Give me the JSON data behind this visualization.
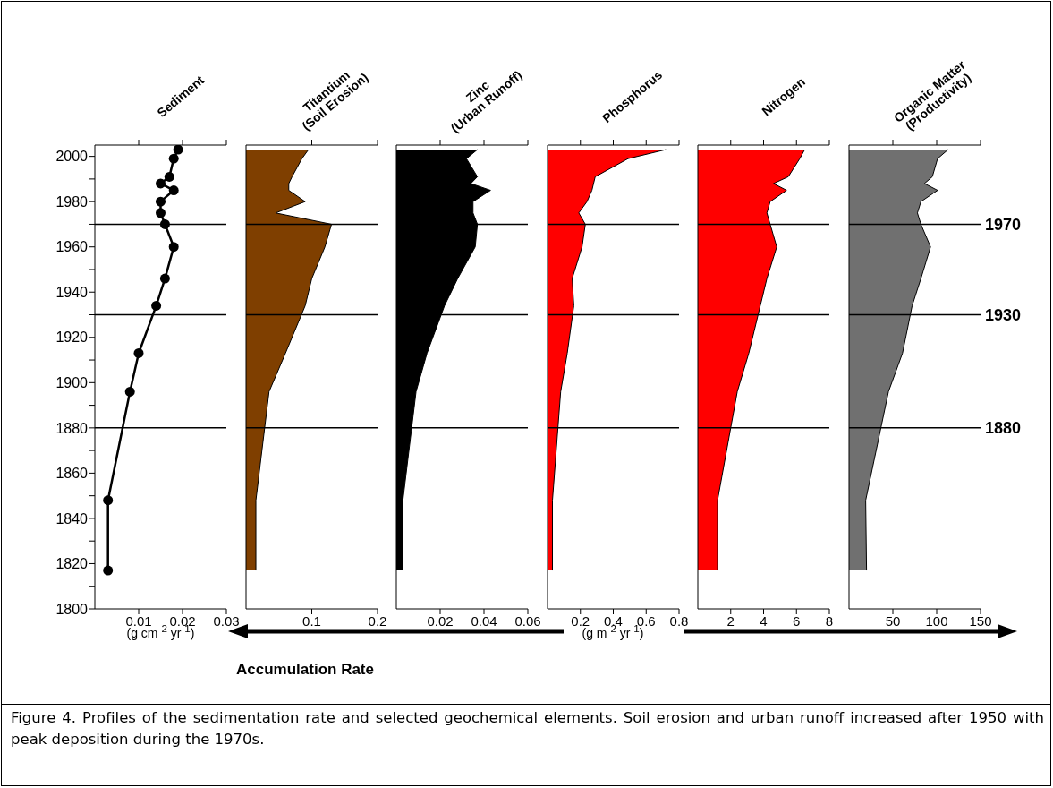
{
  "chart_data": [
    {
      "type": "line",
      "orientation": "horizontal",
      "title": "Sediment",
      "xlabel": "(g cm$^{-2}$ yr$^{-1}$)",
      "color": "#000000",
      "marker": "circle",
      "x": [
        2003,
        1999,
        1991,
        1988,
        1985,
        1980,
        1975,
        1970,
        1960,
        1946,
        1934,
        1913,
        1896,
        1848,
        1817
      ],
      "values": [
        0.019,
        0.018,
        0.017,
        0.015,
        0.018,
        0.015,
        0.015,
        0.016,
        0.018,
        0.016,
        0.014,
        0.01,
        0.008,
        0.003,
        0.003
      ],
      "xlim": [
        0,
        0.03
      ],
      "xticks": [
        0.01,
        0.02,
        0.03
      ],
      "ylim": [
        1800,
        2005
      ],
      "yticks": [
        1800,
        {
          "value": 1810,
          "label": null
        },
        1820,
        {
          "value": 1830,
          "label": null
        },
        1840,
        {
          "value": 1850,
          "label": null
        },
        1860,
        {
          "value": 1870,
          "label": null
        },
        1880,
        {
          "value": 1890,
          "label": null
        },
        1900,
        {
          "value": 1910,
          "label": null
        },
        1920,
        {
          "value": 1930,
          "label": null
        },
        1940,
        {
          "value": 1950,
          "label": null
        },
        1960,
        {
          "value": 1970,
          "label": null
        },
        1980,
        {
          "value": 1990,
          "label": null
        },
        2000
      ],
      "ref_lines": [
        {
          "axis": "y",
          "value": 1970
        },
        {
          "axis": "y",
          "value": 1930
        },
        {
          "axis": "y",
          "value": 1880
        }
      ],
      "annotations": [
        "Accumulation Rate",
        "Figure 4. Profiles of the sedimentation rate and selected geochemical elements. Soil erosion and urban runoff increased after 1950 with peak deposition during the 1970s."
      ]
    },
    {
      "type": "area",
      "orientation": "horizontal",
      "title": "Titantium\n(Soil Erosion)",
      "color": "#7f3f00",
      "tick_labels": "x",
      "x": [
        2003,
        1999,
        1991,
        1988,
        1985,
        1980,
        1975,
        1970,
        1960,
        1946,
        1934,
        1913,
        1896,
        1848,
        1817
      ],
      "values": [
        0.095,
        0.085,
        0.07,
        0.065,
        0.065,
        0.09,
        0.045,
        0.13,
        0.12,
        0.1,
        0.09,
        0.06,
        0.035,
        0.015,
        0.015
      ],
      "xlim": [
        0,
        0.2
      ],
      "xticks": [
        0.1,
        0.2
      ],
      "ylim": [
        1800,
        2005
      ],
      "ref_lines": [
        {
          "axis": "y",
          "value": 1970
        },
        {
          "axis": "y",
          "value": 1930
        },
        {
          "axis": "y",
          "value": 1880
        }
      ]
    },
    {
      "type": "area",
      "orientation": "horizontal",
      "title": "Zinc\n(Urban Runoff)",
      "color": "#000000",
      "tick_labels": "x",
      "x": [
        2003,
        1999,
        1991,
        1988,
        1985,
        1980,
        1975,
        1970,
        1960,
        1946,
        1934,
        1913,
        1896,
        1848,
        1817
      ],
      "values": [
        0.037,
        0.032,
        0.037,
        0.034,
        0.043,
        0.035,
        0.035,
        0.037,
        0.036,
        0.028,
        0.022,
        0.014,
        0.009,
        0.003,
        0.003
      ],
      "xlim": [
        0,
        0.06
      ],
      "xticks": [
        0.02,
        0.04,
        0.06
      ],
      "ylim": [
        1800,
        2005
      ],
      "ref_lines": [
        {
          "axis": "y",
          "value": 1970
        },
        {
          "axis": "y",
          "value": 1930
        },
        {
          "axis": "y",
          "value": 1880
        }
      ]
    },
    {
      "type": "area",
      "orientation": "horizontal",
      "title": "Phosphorus",
      "xlabel": "(g m$^{-2}$ yr$^{-1}$)",
      "color": "#ff0000",
      "tick_labels": "x",
      "x": [
        2003,
        1999,
        1991,
        1988,
        1985,
        1980,
        1975,
        1970,
        1960,
        1946,
        1934,
        1913,
        1896,
        1848,
        1817
      ],
      "values": [
        0.72,
        0.49,
        0.29,
        0.28,
        0.27,
        0.24,
        0.19,
        0.23,
        0.21,
        0.15,
        0.16,
        0.12,
        0.08,
        0.03,
        0.03
      ],
      "xlim": [
        0,
        0.8
      ],
      "xticks": [
        0.2,
        0.4,
        0.6,
        0.8
      ],
      "ylim": [
        1800,
        2005
      ],
      "ref_lines": [
        {
          "axis": "y",
          "value": 1970
        },
        {
          "axis": "y",
          "value": 1930
        },
        {
          "axis": "y",
          "value": 1880
        }
      ]
    },
    {
      "type": "area",
      "orientation": "horizontal",
      "title": "Nitrogen",
      "color": "#ff0000",
      "tick_labels": "x",
      "x": [
        2003,
        1999,
        1991,
        1988,
        1985,
        1980,
        1975,
        1970,
        1960,
        1946,
        1934,
        1913,
        1896,
        1848,
        1817
      ],
      "values": [
        6.5,
        6.2,
        5.5,
        4.6,
        5.4,
        4.4,
        4.2,
        4.4,
        4.8,
        4.2,
        3.8,
        3.1,
        2.4,
        1.2,
        1.2
      ],
      "xlim": [
        0,
        8
      ],
      "xticks": [
        2,
        4,
        6,
        8
      ],
      "ylim": [
        1800,
        2005
      ],
      "ref_lines": [
        {
          "axis": "y",
          "value": 1970
        },
        {
          "axis": "y",
          "value": 1930
        },
        {
          "axis": "y",
          "value": 1880
        }
      ]
    },
    {
      "type": "area",
      "orientation": "horizontal",
      "title": "Organic Matter\n(Productivity)",
      "color": "#707070",
      "tick_labels": "x",
      "x": [
        2003,
        1999,
        1991,
        1988,
        1985,
        1980,
        1975,
        1970,
        1960,
        1946,
        1934,
        1913,
        1896,
        1848,
        1817
      ],
      "values": [
        113,
        101,
        95,
        86,
        101,
        82,
        78,
        82,
        93,
        82,
        72,
        61,
        45,
        19,
        20
      ],
      "xlim": [
        0,
        150
      ],
      "xticks": [
        50,
        100,
        150
      ],
      "ylim": [
        1800,
        2005
      ],
      "ref_lines": [
        {
          "axis": "y",
          "value": 1970,
          "label": "1970"
        },
        {
          "axis": "y",
          "value": 1930,
          "label": "1930"
        },
        {
          "axis": "y",
          "value": 1880,
          "label": "1880"
        }
      ]
    }
  ]
}
